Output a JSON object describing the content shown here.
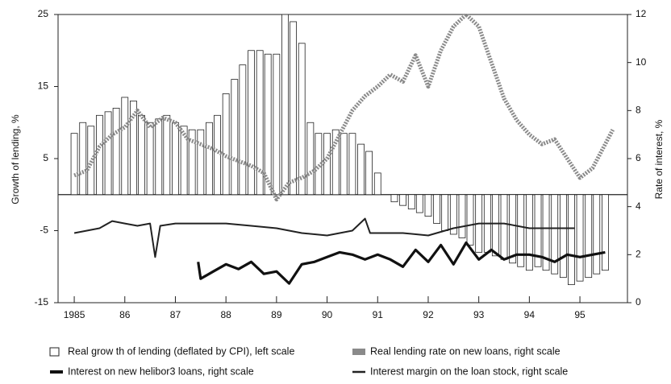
{
  "chart_data": {
    "type": "bar",
    "ylabel": "Growth of lending, %",
    "y2label": "Rate of interest, %",
    "xlim": [
      1984.68,
      1995.94
    ],
    "xticks": [
      1985,
      {
        "value": 1986,
        "label": "86"
      },
      {
        "value": 1987,
        "label": "87"
      },
      {
        "value": 1988,
        "label": "88"
      },
      {
        "value": 1989,
        "label": "89"
      },
      {
        "value": 1990,
        "label": "90"
      },
      {
        "value": 1991,
        "label": "91"
      },
      {
        "value": 1992,
        "label": "92"
      },
      {
        "value": 1993,
        "label": "93"
      },
      {
        "value": 1994,
        "label": "94"
      },
      {
        "value": 1995,
        "label": "95"
      }
    ],
    "ylim": [
      -15,
      25
    ],
    "yticks": [
      -15,
      -5,
      5,
      15,
      25
    ],
    "y2lim": [
      0,
      12
    ],
    "y2ticks": [
      0,
      2,
      4,
      6,
      8,
      10,
      12
    ],
    "series": [
      {
        "name": "Real grow th of lending (deflated by CPI), left scale",
        "type": "bar",
        "color": "#ffffff",
        "x": [
          1985.0,
          1985.17,
          1985.33,
          1985.5,
          1985.67,
          1985.83,
          1986.0,
          1986.17,
          1986.33,
          1986.5,
          1986.67,
          1986.83,
          1987.0,
          1987.17,
          1987.33,
          1987.5,
          1987.67,
          1987.83,
          1988.0,
          1988.17,
          1988.33,
          1988.5,
          1988.67,
          1988.83,
          1989.0,
          1989.17,
          1989.33,
          1989.5,
          1989.67,
          1989.83,
          1990.0,
          1990.17,
          1990.33,
          1990.5,
          1990.67,
          1990.83,
          1991.0,
          1991.17,
          1991.33,
          1991.5,
          1991.67,
          1991.83,
          1992.0,
          1992.17,
          1992.33,
          1992.5,
          1992.67,
          1992.83,
          1993.0,
          1993.17,
          1993.33,
          1993.5,
          1993.67,
          1993.83,
          1994.0,
          1994.17,
          1994.33,
          1994.5,
          1994.67,
          1994.83,
          1995.0,
          1995.17,
          1995.33,
          1995.5
        ],
        "values": [
          8.5,
          10,
          9.5,
          11,
          11.5,
          12,
          13.5,
          13,
          11,
          10,
          10.5,
          11,
          10,
          9.5,
          9,
          9,
          10,
          11,
          14,
          16,
          18,
          20,
          20,
          19.5,
          19.5,
          25,
          24,
          21,
          10,
          8.5,
          8.5,
          9,
          8.5,
          8.5,
          7,
          6,
          3,
          0,
          -1,
          -1.5,
          -2,
          -2.5,
          -3,
          -4,
          -5,
          -5.5,
          -6,
          -7,
          -8,
          -8,
          -8.5,
          -9,
          -9.5,
          -10,
          -10.5,
          -10,
          -10.5,
          -11,
          -11.5,
          -12.5,
          -12,
          -11.5,
          -11,
          -10.5
        ]
      },
      {
        "name": "Real lending rate on new loans, right scale",
        "type": "line",
        "axis": "y2",
        "color": "#8a8a8a",
        "x": [
          1985.0,
          1985.25,
          1985.5,
          1985.75,
          1986.0,
          1986.25,
          1986.5,
          1986.75,
          1987.0,
          1987.25,
          1987.5,
          1987.75,
          1988.0,
          1988.25,
          1988.5,
          1988.75,
          1989.0,
          1989.25,
          1989.5,
          1989.75,
          1990.0,
          1990.25,
          1990.5,
          1990.75,
          1991.0,
          1991.25,
          1991.5,
          1991.75,
          1992.0,
          1992.25,
          1992.5,
          1992.75,
          1993.0,
          1993.25,
          1993.5,
          1993.75,
          1994.0,
          1994.25,
          1994.5,
          1994.75,
          1995.0,
          1995.25,
          1995.5,
          1995.65
        ],
        "values": [
          5.3,
          5.5,
          6.5,
          7.0,
          7.3,
          8.0,
          7.3,
          7.7,
          7.5,
          6.8,
          6.6,
          6.4,
          6.1,
          5.9,
          5.7,
          5.4,
          4.3,
          5.0,
          5.2,
          5.5,
          6.0,
          7.0,
          8.0,
          8.6,
          9.0,
          9.5,
          9.2,
          10.3,
          9.0,
          10.5,
          11.5,
          12.0,
          11.5,
          10.0,
          8.5,
          7.6,
          7.0,
          6.6,
          6.8,
          6.0,
          5.2,
          5.6,
          6.6,
          7.2
        ]
      },
      {
        "name": "Interest on new helibor3 loans, right scale",
        "type": "line",
        "axis": "y2",
        "color": "#111111",
        "x": [
          1987.45,
          1987.5,
          1987.75,
          1988.0,
          1988.25,
          1988.5,
          1988.75,
          1989.0,
          1989.25,
          1989.5,
          1989.75,
          1990.0,
          1990.25,
          1990.5,
          1990.75,
          1991.0,
          1991.25,
          1991.5,
          1991.75,
          1992.0,
          1992.25,
          1992.5,
          1992.75,
          1993.0,
          1993.25,
          1993.5,
          1993.75,
          1994.0,
          1994.25,
          1994.5,
          1994.75,
          1995.0,
          1995.25,
          1995.5
        ],
        "values": [
          1.7,
          1.0,
          1.3,
          1.6,
          1.4,
          1.7,
          1.2,
          1.3,
          0.8,
          1.6,
          1.7,
          1.9,
          2.1,
          2.0,
          1.8,
          2.0,
          1.8,
          1.5,
          2.2,
          1.7,
          2.4,
          1.6,
          2.5,
          1.8,
          2.2,
          1.8,
          2.0,
          2.0,
          1.9,
          1.7,
          2.0,
          1.9,
          2.0,
          2.1
        ]
      },
      {
        "name": "Interest margin on the loan stock, right scale",
        "type": "line",
        "axis": "y2",
        "color": "#222222",
        "x": [
          1985.0,
          1985.5,
          1985.75,
          1986.0,
          1986.25,
          1986.5,
          1986.6,
          1986.7,
          1987.0,
          1987.5,
          1988.0,
          1988.5,
          1989.0,
          1989.5,
          1990.0,
          1990.5,
          1990.75,
          1990.85,
          1991.0,
          1991.5,
          1992.0,
          1992.5,
          1993.0,
          1993.5,
          1994.0,
          1994.5,
          1994.9
        ],
        "values": [
          2.9,
          3.1,
          3.4,
          3.3,
          3.2,
          3.3,
          1.9,
          3.2,
          3.3,
          3.3,
          3.3,
          3.2,
          3.1,
          2.9,
          2.8,
          3.0,
          3.5,
          2.9,
          2.9,
          2.9,
          2.8,
          3.1,
          3.3,
          3.3,
          3.1,
          3.1,
          3.1
        ]
      }
    ]
  }
}
